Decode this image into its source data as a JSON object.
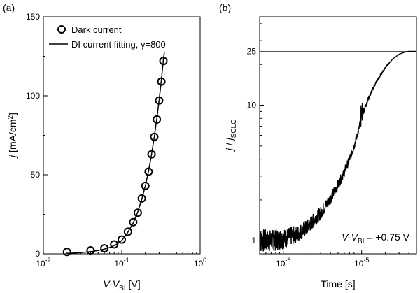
{
  "chart_data": [
    {
      "panel_label": "(a)",
      "type": "scatter",
      "xscale": "log",
      "xlim": [
        0.01,
        1
      ],
      "ylim": [
        0,
        150
      ],
      "xticks": [
        0.01,
        0.1,
        1
      ],
      "yticks": [
        0,
        50,
        100,
        150
      ],
      "xtick_labels": {
        "base": "10",
        "exps": [
          "-2",
          "-1",
          "0"
        ]
      },
      "ytick_labels": [
        "0",
        "50",
        "100",
        "150"
      ],
      "xlabel": {
        "main": "V-V",
        "sub": "BI",
        "unit": " [V]"
      },
      "ylabel": {
        "main": "j",
        "unit": " [mA/cm",
        "sup": "2",
        "close": "]"
      },
      "legend": {
        "placement": "top-left",
        "markers_label": "Dark current",
        "line_label_prefix": "DI current fitting, ",
        "line_label_symbol": "γ",
        "line_label_suffix": "=800"
      },
      "series": [
        {
          "name": "Dark current",
          "style": "open-circle",
          "points": [
            [
              0.02,
              1.2
            ],
            [
              0.04,
              2.2
            ],
            [
              0.06,
              3.5
            ],
            [
              0.08,
              6.0
            ],
            [
              0.1,
              9.0
            ],
            [
              0.12,
              14.0
            ],
            [
              0.14,
              20.0
            ],
            [
              0.16,
              26.0
            ],
            [
              0.18,
              35.0
            ],
            [
              0.2,
              43.0
            ],
            [
              0.22,
              52.0
            ],
            [
              0.24,
              63.0
            ],
            [
              0.26,
              74.0
            ],
            [
              0.28,
              85.0
            ],
            [
              0.3,
              97.0
            ],
            [
              0.32,
              109.0
            ],
            [
              0.34,
              122.0
            ]
          ]
        },
        {
          "name": "DI current fitting, γ=800",
          "style": "line",
          "points": [
            [
              0.02,
              0.3
            ],
            [
              0.03,
              0.8
            ],
            [
              0.04,
              1.4
            ],
            [
              0.05,
              2.1
            ],
            [
              0.06,
              3.0
            ],
            [
              0.07,
              4.0
            ],
            [
              0.08,
              5.2
            ],
            [
              0.09,
              6.7
            ],
            [
              0.1,
              8.5
            ],
            [
              0.11,
              11.0
            ],
            [
              0.12,
              13.8
            ],
            [
              0.14,
              19.5
            ],
            [
              0.16,
              26.5
            ],
            [
              0.18,
              34.5
            ],
            [
              0.2,
              43.0
            ],
            [
              0.22,
              52.5
            ],
            [
              0.24,
              63.0
            ],
            [
              0.26,
              74.0
            ],
            [
              0.28,
              85.5
            ],
            [
              0.3,
              97.5
            ],
            [
              0.32,
              110.0
            ],
            [
              0.34,
              123.0
            ],
            [
              0.35,
              128.0
            ]
          ]
        }
      ]
    },
    {
      "panel_label": "(b)",
      "type": "line",
      "xscale": "log",
      "yscale": "log",
      "xlim": [
        5e-07,
        5e-05
      ],
      "ylim": [
        0.8,
        45
      ],
      "xticks": [
        1e-06,
        1e-05
      ],
      "yticks": [
        1,
        10,
        25
      ],
      "xtick_labels": {
        "base": "10",
        "exps": [
          "-6",
          "-5"
        ]
      },
      "ytick_labels": [
        "1",
        "10",
        "25"
      ],
      "xlabel": "Time [s]",
      "ylabel": {
        "main": "j",
        "sep": " / ",
        "main2": "j",
        "sub": "SCLC"
      },
      "reference_line": 25,
      "annotation": {
        "main": "V-V",
        "sub": "BI",
        "rest": " = +0.75 V"
      },
      "series": [
        {
          "name": "",
          "style": "line",
          "points": [
            [
              5e-07,
              1.0
            ],
            [
              7e-07,
              1.0
            ],
            [
              1e-06,
              1.03
            ],
            [
              1.5e-06,
              1.12
            ],
            [
              2e-06,
              1.25
            ],
            [
              3e-06,
              1.6
            ],
            [
              4e-06,
              2.05
            ],
            [
              5e-06,
              2.6
            ],
            [
              6e-06,
              3.2
            ],
            [
              7e-06,
              4.0
            ],
            [
              8e-06,
              5.0
            ],
            [
              9e-06,
              6.3
            ],
            [
              1e-05,
              8.3
            ],
            [
              1.2e-05,
              11.0
            ],
            [
              1.5e-05,
              14.5
            ],
            [
              2e-05,
              19.0
            ],
            [
              2.5e-05,
              22.0
            ],
            [
              3e-05,
              23.8
            ],
            [
              3.5e-05,
              24.6
            ],
            [
              4e-05,
              25.0
            ],
            [
              5e-05,
              25.0
            ]
          ]
        }
      ]
    }
  ]
}
